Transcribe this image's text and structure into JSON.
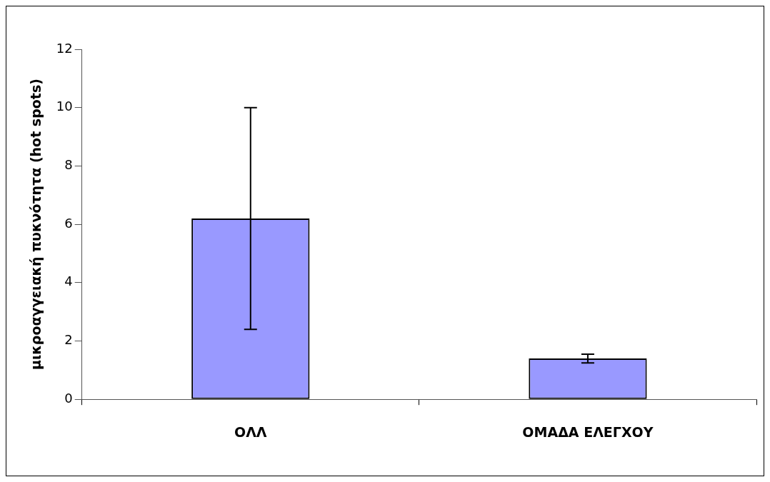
{
  "chart_data": {
    "type": "bar",
    "ylabel": "μικροαγγειακή πυκνότητα (hot spots)",
    "categories": [
      "ΟΛΛ",
      "ΟΜΑΔΑ ΕΛΕΓΧΟΥ"
    ],
    "values": [
      6.2,
      1.4
    ],
    "errors": [
      3.8,
      0.15
    ],
    "color": "#9999ff",
    "ylim": [
      0,
      12
    ],
    "yticks": [
      0,
      2,
      4,
      6,
      8,
      10,
      12
    ],
    "grid": false,
    "legend": false
  }
}
